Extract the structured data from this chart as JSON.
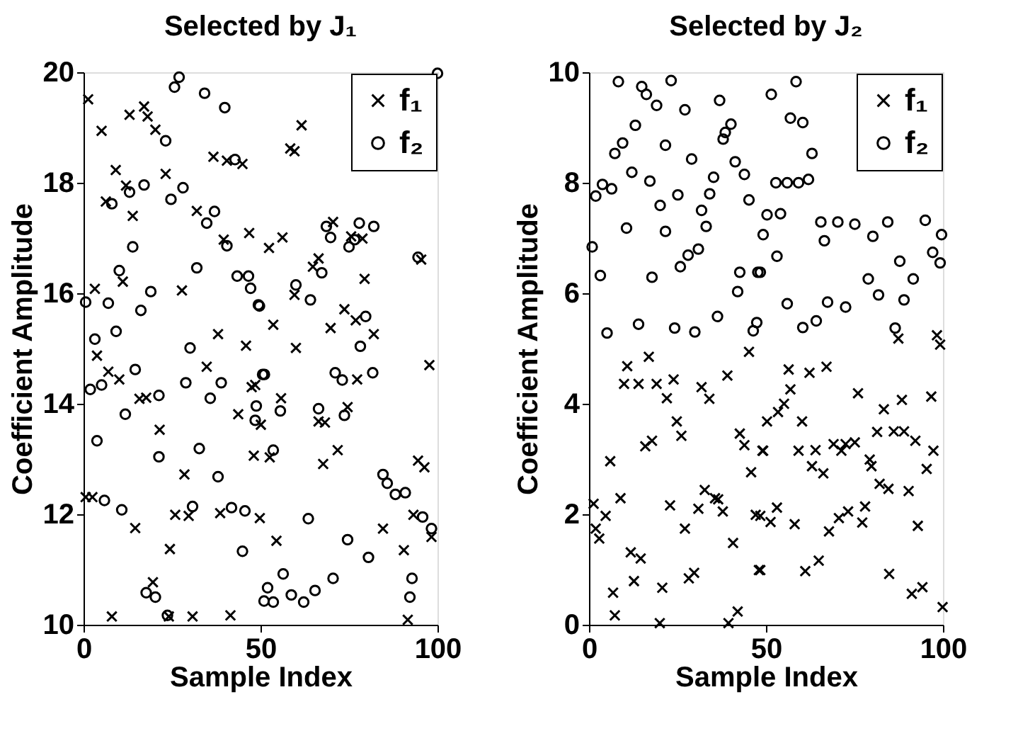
{
  "chart_data": [
    {
      "type": "scatter",
      "title": "Selected by J₁",
      "xlabel": "Sample Index",
      "ylabel": "Coefficient Amplitude",
      "xlim": [
        0,
        100
      ],
      "xticks": [
        0,
        50,
        100
      ],
      "ylim": [
        10,
        20
      ],
      "yticks": [
        10,
        12,
        14,
        16,
        18,
        20
      ],
      "grid": false,
      "legend": "top right",
      "series": [
        {
          "name": "f₁",
          "color": "#000000",
          "marker": "cross",
          "x": [
            1.3,
            5.1,
            13.0,
            17.1,
            18.1,
            20.3,
            9.1,
            12.0,
            23.2,
            36.7,
            40.5,
            44.9,
            6.3,
            13.9,
            32.0,
            39.6,
            46.8,
            3.2,
            11.1,
            27.8,
            38.0,
            45.9,
            3.8,
            7.0,
            10.1,
            34.8,
            15.8,
            17.7,
            47.5,
            43.7,
            21.5,
            48.1,
            28.5,
            0.6,
            2.5,
            25.9,
            29.7,
            38.6,
            14.6,
            24.4,
            19.6,
            8.0,
            30.8,
            41.5,
            24.1,
            61.6,
            58.4,
            59.6,
            70.5,
            75.6,
            78.8,
            52.4,
            56.2,
            64.8,
            66.4,
            95.4,
            59.6,
            79.4,
            73.7,
            76.9,
            82.0,
            53.6,
            69.8,
            60.0,
            77.3,
            97.7,
            48.5,
            55.8,
            74.6,
            66.4,
            68.2,
            50.1,
            71.8,
            67.7,
            94.5,
            96.3,
            52.6,
            49.8,
            54.5,
            84.6,
            90.5,
            93.2,
            98.3,
            91.6
          ],
          "values": [
            19.51,
            18.94,
            19.23,
            19.38,
            19.2,
            18.96,
            18.23,
            17.95,
            18.16,
            18.47,
            18.4,
            18.34,
            17.66,
            17.4,
            17.49,
            16.97,
            17.09,
            16.08,
            16.21,
            16.05,
            15.26,
            15.05,
            14.87,
            14.58,
            14.44,
            14.67,
            14.09,
            14.11,
            14.3,
            13.81,
            13.53,
            13.06,
            12.72,
            12.31,
            12.31,
            11.99,
            11.97,
            12.02,
            11.75,
            11.37,
            10.77,
            10.15,
            10.15,
            10.17,
            10.15,
            19.04,
            18.62,
            18.57,
            17.29,
            17.03,
            16.99,
            16.82,
            17.01,
            16.48,
            16.63,
            16.61,
            15.97,
            16.26,
            15.71,
            15.51,
            15.26,
            15.43,
            15.37,
            15.01,
            14.44,
            14.7,
            14.34,
            14.1,
            13.94,
            13.68,
            13.66,
            13.62,
            13.16,
            12.91,
            12.97,
            12.85,
            13.03,
            11.93,
            11.52,
            11.74,
            11.35,
            11.99,
            11.59,
            10.09
          ]
        },
        {
          "name": "f₂",
          "color": "#000000",
          "marker": "circle",
          "x": [
            27.0,
            25.7,
            34.2,
            39.9,
            23.2,
            42.8,
            17.1,
            13.0,
            28.1,
            24.7,
            8.0,
            37.0,
            34.8,
            13.9,
            40.5,
            10.1,
            32.0,
            43.4,
            46.6,
            47.2,
            49.7,
            0.6,
            7.0,
            19.0,
            16.2,
            3.2,
            9.2,
            30.1,
            1.9,
            5.1,
            14.6,
            28.9,
            38.9,
            35.8,
            50.6,
            21.3,
            11.8,
            48.5,
            3.8,
            21.3,
            32.7,
            38.0,
            5.9,
            10.8,
            30.8,
            41.8,
            45.6,
            44.9,
            17.7,
            20.3,
            23.7,
            51.0,
            100,
            68.6,
            69.8,
            77.9,
            82.0,
            75.0,
            76.6,
            94.5,
            49.4,
            60.0,
            64.1,
            67.3,
            79.7,
            78.2,
            71.1,
            73.1,
            81.7,
            51.1,
            48.8,
            55.6,
            66.4,
            73.7,
            53.6,
            84.6,
            85.8,
            88.1,
            90.9,
            63.5,
            74.6,
            80.5,
            95.8,
            98.3,
            56.4,
            70.5,
            65.4,
            58.7,
            52.0,
            53.6,
            62.2,
            92.8,
            92.2
          ],
          "values": [
            19.91,
            19.73,
            19.62,
            19.36,
            18.76,
            18.42,
            17.96,
            17.83,
            17.91,
            17.7,
            17.62,
            17.48,
            17.27,
            16.84,
            16.86,
            16.41,
            16.46,
            16.31,
            16.31,
            16.09,
            15.77,
            15.84,
            15.82,
            16.03,
            15.69,
            15.17,
            15.31,
            15.01,
            14.26,
            14.34,
            14.62,
            14.38,
            14.38,
            14.1,
            14.53,
            14.15,
            13.81,
            13.7,
            13.33,
            13.04,
            13.19,
            12.68,
            12.25,
            12.08,
            12.14,
            12.12,
            12.06,
            11.33,
            10.58,
            10.5,
            10.17,
            10.43,
            19.98,
            17.21,
            17.01,
            17.27,
            17.21,
            16.84,
            16.97,
            16.65,
            15.79,
            16.15,
            15.88,
            16.37,
            15.58,
            15.04,
            14.56,
            14.43,
            14.56,
            14.53,
            13.96,
            13.87,
            13.91,
            13.79,
            13.16,
            12.72,
            12.56,
            12.36,
            12.39,
            11.92,
            11.54,
            11.22,
            11.95,
            11.74,
            10.92,
            10.84,
            10.62,
            10.54,
            10.67,
            10.41,
            10.41,
            10.84,
            10.5
          ]
        }
      ]
    },
    {
      "type": "scatter",
      "title": "Selected by J₂",
      "xlabel": "Sample Index",
      "ylabel": "Coefficient Amplitude",
      "xlim": [
        0,
        100
      ],
      "xticks": [
        0,
        50,
        100
      ],
      "ylim": [
        0,
        10
      ],
      "yticks": [
        0,
        2,
        4,
        6,
        8,
        10
      ],
      "grid": false,
      "legend": "top right",
      "series": [
        {
          "name": "f₁",
          "color": "#000000",
          "marker": "cross",
          "x": [
            16.9,
            10.8,
            9.9,
            14.0,
            19.1,
            23.9,
            22.0,
            31.8,
            34.0,
            39.1,
            45.2,
            24.8,
            26.1,
            42.6,
            43.9,
            15.9,
            17.8,
            49.0,
            6.0,
            45.8,
            32.7,
            35.6,
            36.5,
            37.8,
            8.9,
            22.9,
            30.9,
            47.1,
            1.3,
            4.7,
            1.9,
            2.9,
            27.1,
            40.7,
            11.8,
            14.6,
            48.0,
            12.7,
            20.7,
            28.2,
            29.7,
            6.8,
            7.3,
            20.0,
            42.0,
            39.4,
            87.4,
            98.3,
            99.2,
            56.4,
            62.3,
            67.1,
            56.9,
            55.1,
            53.4,
            50.3,
            60.2,
            76.0,
            83.3,
            88.4,
            96.7,
            49.2,
            59.2,
            64.0,
            63.0,
            66.2,
            69.1,
            71.3,
            72.5,
            75.1,
            79.3,
            79.8,
            81.4,
            86.1,
            89.0,
            92.2,
            97.3,
            95.4,
            82.1,
            84.6,
            90.3,
            48.4,
            51.3,
            53.1,
            58.1,
            67.8,
            70.6,
            73.2,
            78.0,
            77.2,
            92.9,
            48.4,
            61.1,
            64.9,
            84.8,
            91.2,
            94.2,
            99.9
          ],
          "values": [
            4.85,
            4.68,
            4.36,
            4.36,
            4.36,
            4.44,
            4.1,
            4.3,
            4.09,
            4.51,
            4.94,
            3.68,
            3.42,
            3.46,
            3.25,
            3.23,
            3.33,
            3.15,
            2.96,
            2.76,
            2.44,
            2.29,
            2.27,
            2.05,
            2.29,
            2.16,
            2.1,
            1.99,
            2.19,
            1.97,
            1.74,
            1.56,
            1.74,
            1.48,
            1.31,
            1.2,
            0.99,
            0.79,
            0.67,
            0.84,
            0.94,
            0.58,
            0.17,
            0.03,
            0.24,
            0.03,
            5.18,
            5.24,
            5.07,
            4.62,
            4.56,
            4.67,
            4.26,
            4.0,
            3.85,
            3.68,
            3.68,
            4.19,
            3.9,
            4.07,
            4.13,
            3.15,
            3.15,
            3.16,
            2.87,
            2.74,
            3.27,
            3.15,
            3.27,
            3.3,
            2.99,
            2.87,
            3.49,
            3.5,
            3.5,
            3.33,
            3.15,
            2.82,
            2.55,
            2.46,
            2.42,
            1.97,
            1.86,
            2.12,
            1.82,
            1.69,
            1.93,
            2.05,
            2.14,
            1.85,
            1.79,
            0.99,
            0.97,
            1.16,
            0.92,
            0.56,
            0.68,
            0.32
          ]
        },
        {
          "name": "f₂",
          "color": "#000000",
          "marker": "circle",
          "x": [
            8.3,
            14.9,
            16.2,
            23.2,
            19.1,
            27.1,
            36.9,
            13.1,
            21.6,
            9.5,
            7.3,
            29.0,
            40.1,
            38.5,
            37.9,
            41.3,
            12.1,
            17.2,
            35.2,
            43.9,
            3.8,
            6.4,
            1.9,
            25.1,
            20.1,
            34.1,
            31.8,
            45.2,
            10.6,
            21.6,
            33.1,
            0.9,
            30.9,
            28.0,
            25.8,
            3.2,
            17.8,
            42.6,
            47.7,
            42.0,
            36.3,
            5.1,
            14.0,
            24.2,
            29.9,
            47.4,
            46.4,
            58.5,
            51.5,
            56.9,
            60.4,
            63.0,
            52.8,
            56.0,
            59.2,
            62.0,
            50.3,
            54.1,
            49.2,
            65.5,
            66.5,
            70.3,
            75.1,
            80.2,
            84.4,
            95.0,
            99.6,
            97.1,
            99.2,
            53.1,
            48.4,
            87.8,
            78.9,
            81.8,
            91.6,
            89.0,
            56.0,
            67.4,
            72.5,
            64.2,
            60.4,
            86.5
          ],
          "values": [
            9.83,
            9.74,
            9.6,
            9.85,
            9.4,
            9.32,
            9.49,
            9.04,
            8.68,
            8.72,
            8.53,
            8.43,
            9.06,
            8.91,
            8.79,
            8.38,
            8.19,
            8.03,
            8.1,
            8.15,
            7.97,
            7.89,
            7.76,
            7.78,
            7.59,
            7.8,
            7.5,
            7.69,
            7.18,
            7.12,
            7.21,
            6.84,
            6.8,
            6.69,
            6.48,
            6.32,
            6.29,
            6.38,
            6.38,
            6.03,
            5.58,
            5.28,
            5.44,
            5.37,
            5.3,
            5.47,
            5.32,
            9.83,
            9.6,
            9.17,
            9.09,
            8.53,
            8.0,
            8.0,
            8.0,
            8.06,
            7.42,
            7.44,
            7.06,
            7.29,
            6.95,
            7.29,
            7.25,
            7.03,
            7.29,
            7.32,
            7.06,
            6.74,
            6.55,
            6.67,
            6.38,
            6.58,
            6.26,
            5.97,
            6.26,
            5.88,
            5.81,
            5.84,
            5.75,
            5.5,
            5.38,
            5.37
          ]
        }
      ]
    }
  ]
}
